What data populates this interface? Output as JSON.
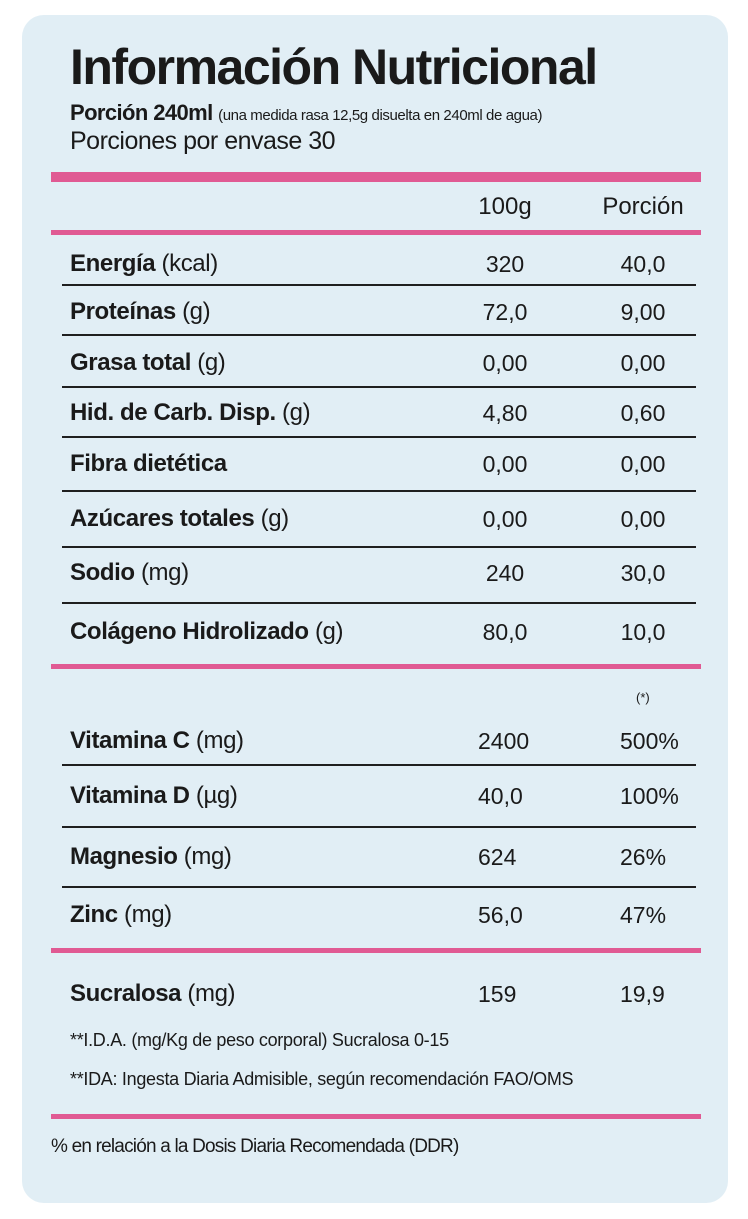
{
  "title": "Información Nutricional",
  "portion": {
    "label": "Porción 240ml",
    "detail": "(una medida rasa 12,5g disuelta en 240ml de agua)"
  },
  "servings": "Porciones por envase 30",
  "colors": {
    "accent": "#e05a93",
    "background": "#e1eef5"
  },
  "headers": {
    "col1": "100g",
    "col2": "Porción"
  },
  "nutrients": [
    {
      "name": "Energía",
      "unit": "(kcal)",
      "v100": "320",
      "vportion": "40,0"
    },
    {
      "name": "Proteínas",
      "unit": "(g)",
      "v100": "72,0",
      "vportion": "9,00"
    },
    {
      "name": "Grasa total",
      "unit": "(g)",
      "v100": "0,00",
      "vportion": "0,00"
    },
    {
      "name": "Hid. de Carb. Disp.",
      "unit": "(g)",
      "v100": "4,80",
      "vportion": "0,60"
    },
    {
      "name": "Fibra dietética",
      "unit": "",
      "v100": "0,00",
      "vportion": "0,00"
    },
    {
      "name": "Azúcares totales",
      "unit": "(g)",
      "v100": "0,00",
      "vportion": "0,00"
    },
    {
      "name": "Sodio",
      "unit": " (mg)",
      "v100": "240",
      "vportion": "30,0"
    },
    {
      "name": "Colágeno Hidrolizado",
      "unit": " (g)",
      "v100": "80,0",
      "vportion": "10,0"
    }
  ],
  "ddr_marker": "(*)",
  "vitamins": [
    {
      "name": "Vitamina C",
      "unit": "(mg)",
      "v100": "2400",
      "vportion": "500%"
    },
    {
      "name": "Vitamina D",
      "unit": "(µg)",
      "v100": "40,0",
      "vportion": "100%"
    },
    {
      "name": "Magnesio",
      "unit": "(mg)",
      "v100": "624",
      "vportion": "26%"
    },
    {
      "name": "Zinc",
      "unit": "(mg)",
      "v100": "56,0",
      "vportion": "47%"
    }
  ],
  "sweetener": {
    "name": "Sucralosa",
    "unit": "(mg)",
    "v100": "159",
    "vportion": "19,9"
  },
  "notes": [
    "**I.D.A. (mg/Kg de peso corporal) Sucralosa 0-15",
    "**IDA: Ingesta Diaria Admisible, según recomendación FAO/OMS"
  ],
  "footer": "% en relación a la Dosis Diaria Recomendada (DDR)"
}
